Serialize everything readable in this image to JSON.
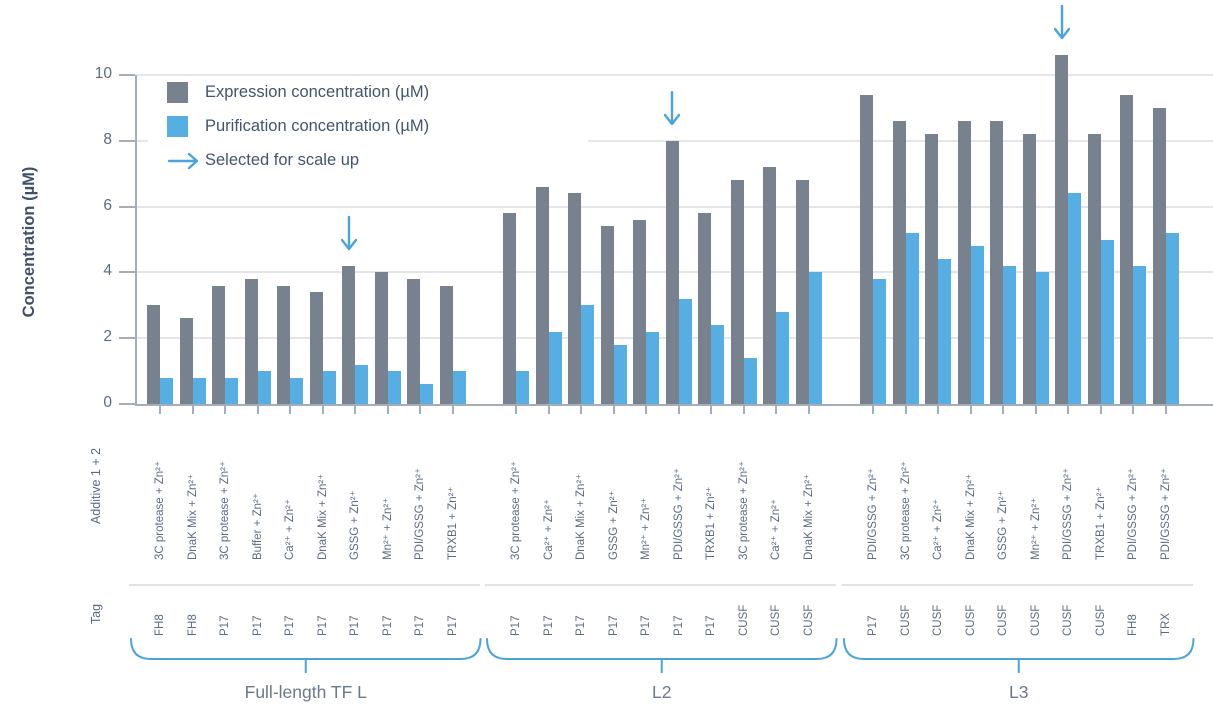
{
  "chart_data": {
    "type": "bar",
    "title": "",
    "ylabel": "Concentration (µM)",
    "ylim": [
      0,
      10
    ],
    "yticks": [
      0,
      2,
      4,
      6,
      8,
      10
    ],
    "grid": true,
    "legend_position": "top-left",
    "row_labels": {
      "additive": "Additive 1 + 2",
      "tag": "Tag"
    },
    "legend": [
      {
        "label": "Expression concentration (µM)",
        "swatch": "#78828f",
        "type": "square"
      },
      {
        "label": "Purification concentration (µM)",
        "swatch": "#56aee2",
        "type": "square"
      },
      {
        "label": "Selected for scale up",
        "swatch": "#4aa4dc",
        "type": "arrow"
      }
    ],
    "series_names": [
      "Expression concentration (µM)",
      "Purification concentration (µM)"
    ],
    "colors": {
      "expression_bar": "#78828f",
      "purification_bar": "#56aee2",
      "accent_blue": "#4aa4dc",
      "grid": "#e3e5e9",
      "axis": "#a5adb7",
      "text": "#5b6b80"
    },
    "groups": [
      {
        "label": "Full-length TF L",
        "bars": [
          {
            "additive": "3C protease + Zn²⁺",
            "tag": "FH8",
            "expression": 3.0,
            "purification": 0.8,
            "selected": false
          },
          {
            "additive": "DnaK Mix + Zn²⁺",
            "tag": "FH8",
            "expression": 2.6,
            "purification": 0.8,
            "selected": false
          },
          {
            "additive": "3C protease + Zn²⁺",
            "tag": "P17",
            "expression": 3.6,
            "purification": 0.8,
            "selected": false
          },
          {
            "additive": "Buffer + Zn²⁺",
            "tag": "P17",
            "expression": 3.8,
            "purification": 1.0,
            "selected": false
          },
          {
            "additive": "Ca²⁺ + Zn²⁺",
            "tag": "P17",
            "expression": 3.6,
            "purification": 0.8,
            "selected": false
          },
          {
            "additive": "DnaK Mix + Zn²⁺",
            "tag": "P17",
            "expression": 3.4,
            "purification": 1.0,
            "selected": false
          },
          {
            "additive": "GSSG + Zn²⁺",
            "tag": "P17",
            "expression": 4.2,
            "purification": 1.2,
            "selected": true
          },
          {
            "additive": "Mn²⁺ + Zn²⁺",
            "tag": "P17",
            "expression": 4.0,
            "purification": 1.0,
            "selected": false
          },
          {
            "additive": "PDI/GSSG + Zn²⁺",
            "tag": "P17",
            "expression": 3.8,
            "purification": 0.6,
            "selected": false
          },
          {
            "additive": "TRXB1 + Zn²⁺",
            "tag": "P17",
            "expression": 3.6,
            "purification": 1.0,
            "selected": false
          }
        ]
      },
      {
        "label": "L2",
        "bars": [
          {
            "additive": "3C protease + Zn²⁺",
            "tag": "P17",
            "expression": 5.8,
            "purification": 1.0,
            "selected": false
          },
          {
            "additive": "Ca²⁺ + Zn²⁺",
            "tag": "P17",
            "expression": 6.6,
            "purification": 2.2,
            "selected": false
          },
          {
            "additive": "DnaK Mix + Zn²⁺",
            "tag": "P17",
            "expression": 6.4,
            "purification": 3.0,
            "selected": false
          },
          {
            "additive": "GSSG + Zn²⁺",
            "tag": "P17",
            "expression": 5.4,
            "purification": 1.8,
            "selected": false
          },
          {
            "additive": "Mn²⁺ + Zn²⁺",
            "tag": "P17",
            "expression": 5.6,
            "purification": 2.2,
            "selected": false
          },
          {
            "additive": "PDI/GSSG + Zn²⁺",
            "tag": "P17",
            "expression": 8.0,
            "purification": 3.2,
            "selected": true
          },
          {
            "additive": "TRXB1 + Zn²⁺",
            "tag": "P17",
            "expression": 5.8,
            "purification": 2.4,
            "selected": false
          },
          {
            "additive": "3C protease + Zn²⁺",
            "tag": "CUSF",
            "expression": 6.8,
            "purification": 1.4,
            "selected": false
          },
          {
            "additive": "Ca²⁺ + Zn²⁺",
            "tag": "CUSF",
            "expression": 7.2,
            "purification": 2.8,
            "selected": false
          },
          {
            "additive": "DnaK Mix + Zn²⁺",
            "tag": "CUSF",
            "expression": 6.8,
            "purification": 4.0,
            "selected": false
          }
        ]
      },
      {
        "label": "L3",
        "bars": [
          {
            "additive": "PDI/GSSG + Zn²⁺",
            "tag": "P17",
            "expression": 9.4,
            "purification": 3.8,
            "selected": false
          },
          {
            "additive": "3C protease + Zn²⁺",
            "tag": "CUSF",
            "expression": 8.6,
            "purification": 5.2,
            "selected": false
          },
          {
            "additive": "Ca²⁺ + Zn²⁺",
            "tag": "CUSF",
            "expression": 8.2,
            "purification": 4.4,
            "selected": false
          },
          {
            "additive": "DnaK Mix + Zn²⁺",
            "tag": "CUSF",
            "expression": 8.6,
            "purification": 4.8,
            "selected": false
          },
          {
            "additive": "GSSG + Zn²⁺",
            "tag": "CUSF",
            "expression": 8.6,
            "purification": 4.2,
            "selected": false
          },
          {
            "additive": "Mn²⁺ + Zn²⁺",
            "tag": "CUSF",
            "expression": 8.2,
            "purification": 4.0,
            "selected": false
          },
          {
            "additive": "PDI/GSSG + Zn²⁺",
            "tag": "CUSF",
            "expression": 10.6,
            "purification": 6.4,
            "selected": true
          },
          {
            "additive": "TRXB1 + Zn²⁺",
            "tag": "CUSF",
            "expression": 8.2,
            "purification": 5.0,
            "selected": false
          },
          {
            "additive": "PDI/GSSG + Zn²⁺",
            "tag": "FH8",
            "expression": 9.4,
            "purification": 4.2,
            "selected": false
          },
          {
            "additive": "PDI/GSSG + Zn²⁺",
            "tag": "TRX",
            "expression": 9.0,
            "purification": 5.2,
            "selected": false
          }
        ]
      }
    ]
  }
}
